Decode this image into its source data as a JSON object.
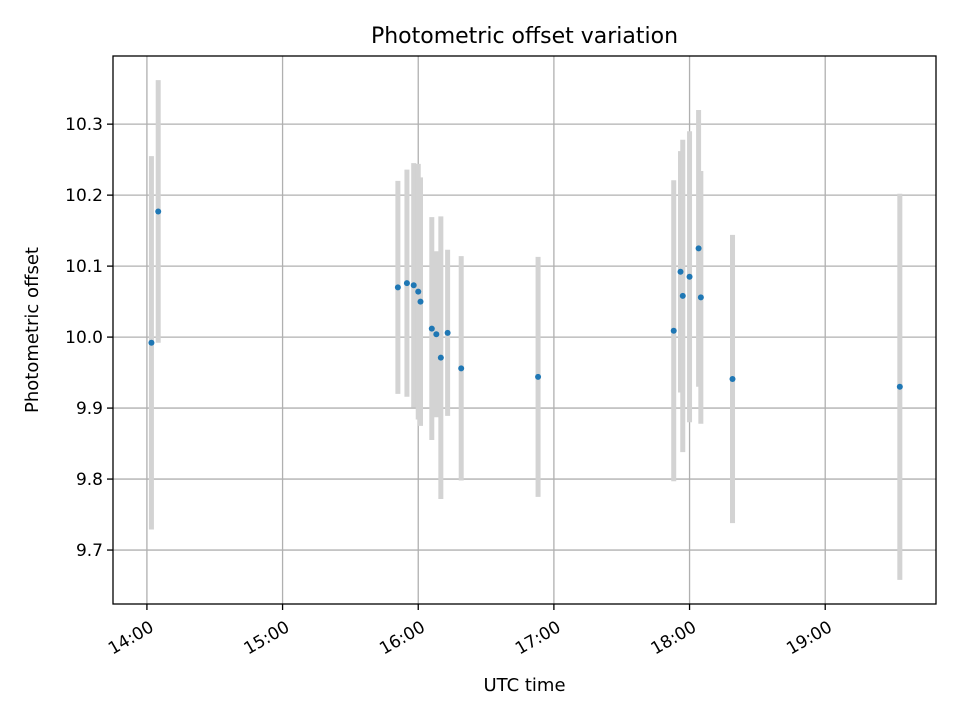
{
  "chart_data": {
    "type": "scatter",
    "title": "Photometric offset variation",
    "xlabel": "UTC time",
    "ylabel": "Photometric offset",
    "x_ticks": [
      "14:00",
      "15:00",
      "16:00",
      "17:00",
      "18:00",
      "19:00"
    ],
    "y_ticks": [
      "9.7",
      "9.8",
      "9.9",
      "10.0",
      "10.1",
      "10.2",
      "10.3"
    ],
    "xlim": [
      "13:45",
      "19:49"
    ],
    "ylim": [
      9.624,
      10.396
    ],
    "grid": true,
    "series": [
      {
        "point_color": "#1f77b4",
        "errorbar_color": "#d3d3d3",
        "points": [
          {
            "x": "14:02",
            "y": 9.992,
            "err": 0.263
          },
          {
            "x": "14:05",
            "y": 10.177,
            "err": 0.185
          },
          {
            "x": "15:51",
            "y": 10.07,
            "err": 0.15
          },
          {
            "x": "15:55",
            "y": 10.076,
            "err": 0.16
          },
          {
            "x": "15:58",
            "y": 10.073,
            "err": 0.172
          },
          {
            "x": "16:00",
            "y": 10.064,
            "err": 0.18
          },
          {
            "x": "16:01",
            "y": 10.05,
            "err": 0.175
          },
          {
            "x": "16:06",
            "y": 10.012,
            "err": 0.157
          },
          {
            "x": "16:08",
            "y": 10.004,
            "err": 0.117
          },
          {
            "x": "16:10",
            "y": 9.971,
            "err": 0.199
          },
          {
            "x": "16:13",
            "y": 10.006,
            "err": 0.117
          },
          {
            "x": "16:19",
            "y": 9.956,
            "err": 0.158
          },
          {
            "x": "16:53",
            "y": 9.944,
            "err": 0.169
          },
          {
            "x": "17:53",
            "y": 10.009,
            "err": 0.212
          },
          {
            "x": "17:56",
            "y": 10.092,
            "err": 0.17
          },
          {
            "x": "17:57",
            "y": 10.058,
            "err": 0.22
          },
          {
            "x": "18:00",
            "y": 10.085,
            "err": 0.205
          },
          {
            "x": "18:04",
            "y": 10.125,
            "err": 0.195
          },
          {
            "x": "18:05",
            "y": 10.056,
            "err": 0.178
          },
          {
            "x": "18:19",
            "y": 9.941,
            "err": 0.203
          },
          {
            "x": "19:33",
            "y": 9.93,
            "err": 0.272
          }
        ]
      }
    ]
  }
}
